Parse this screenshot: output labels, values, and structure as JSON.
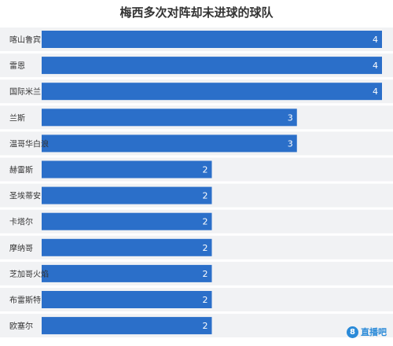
{
  "chart_data": {
    "type": "bar",
    "orientation": "horizontal",
    "title": "梅西多次对阵却未进球的球队",
    "xlabel": "",
    "ylabel": "",
    "xlim": [
      0,
      4
    ],
    "grid": false,
    "categories": [
      "喀山鲁宾",
      "雷恩",
      "国际米兰",
      "兰斯",
      "温哥华白浪",
      "赫雷斯",
      "圣埃蒂安",
      "卡塔尔",
      "摩纳哥",
      "芝加哥火焰",
      "布雷斯特",
      "欧塞尔"
    ],
    "values": [
      4,
      4,
      4,
      3,
      3,
      2,
      2,
      2,
      2,
      2,
      2,
      2
    ],
    "colors": {
      "bar": "#2b6fc9",
      "band": "#f1f2f4",
      "value_label": "#ffffff",
      "category_label": "#333333"
    }
  },
  "watermark": {
    "icon": "8",
    "text": "直播吧"
  }
}
